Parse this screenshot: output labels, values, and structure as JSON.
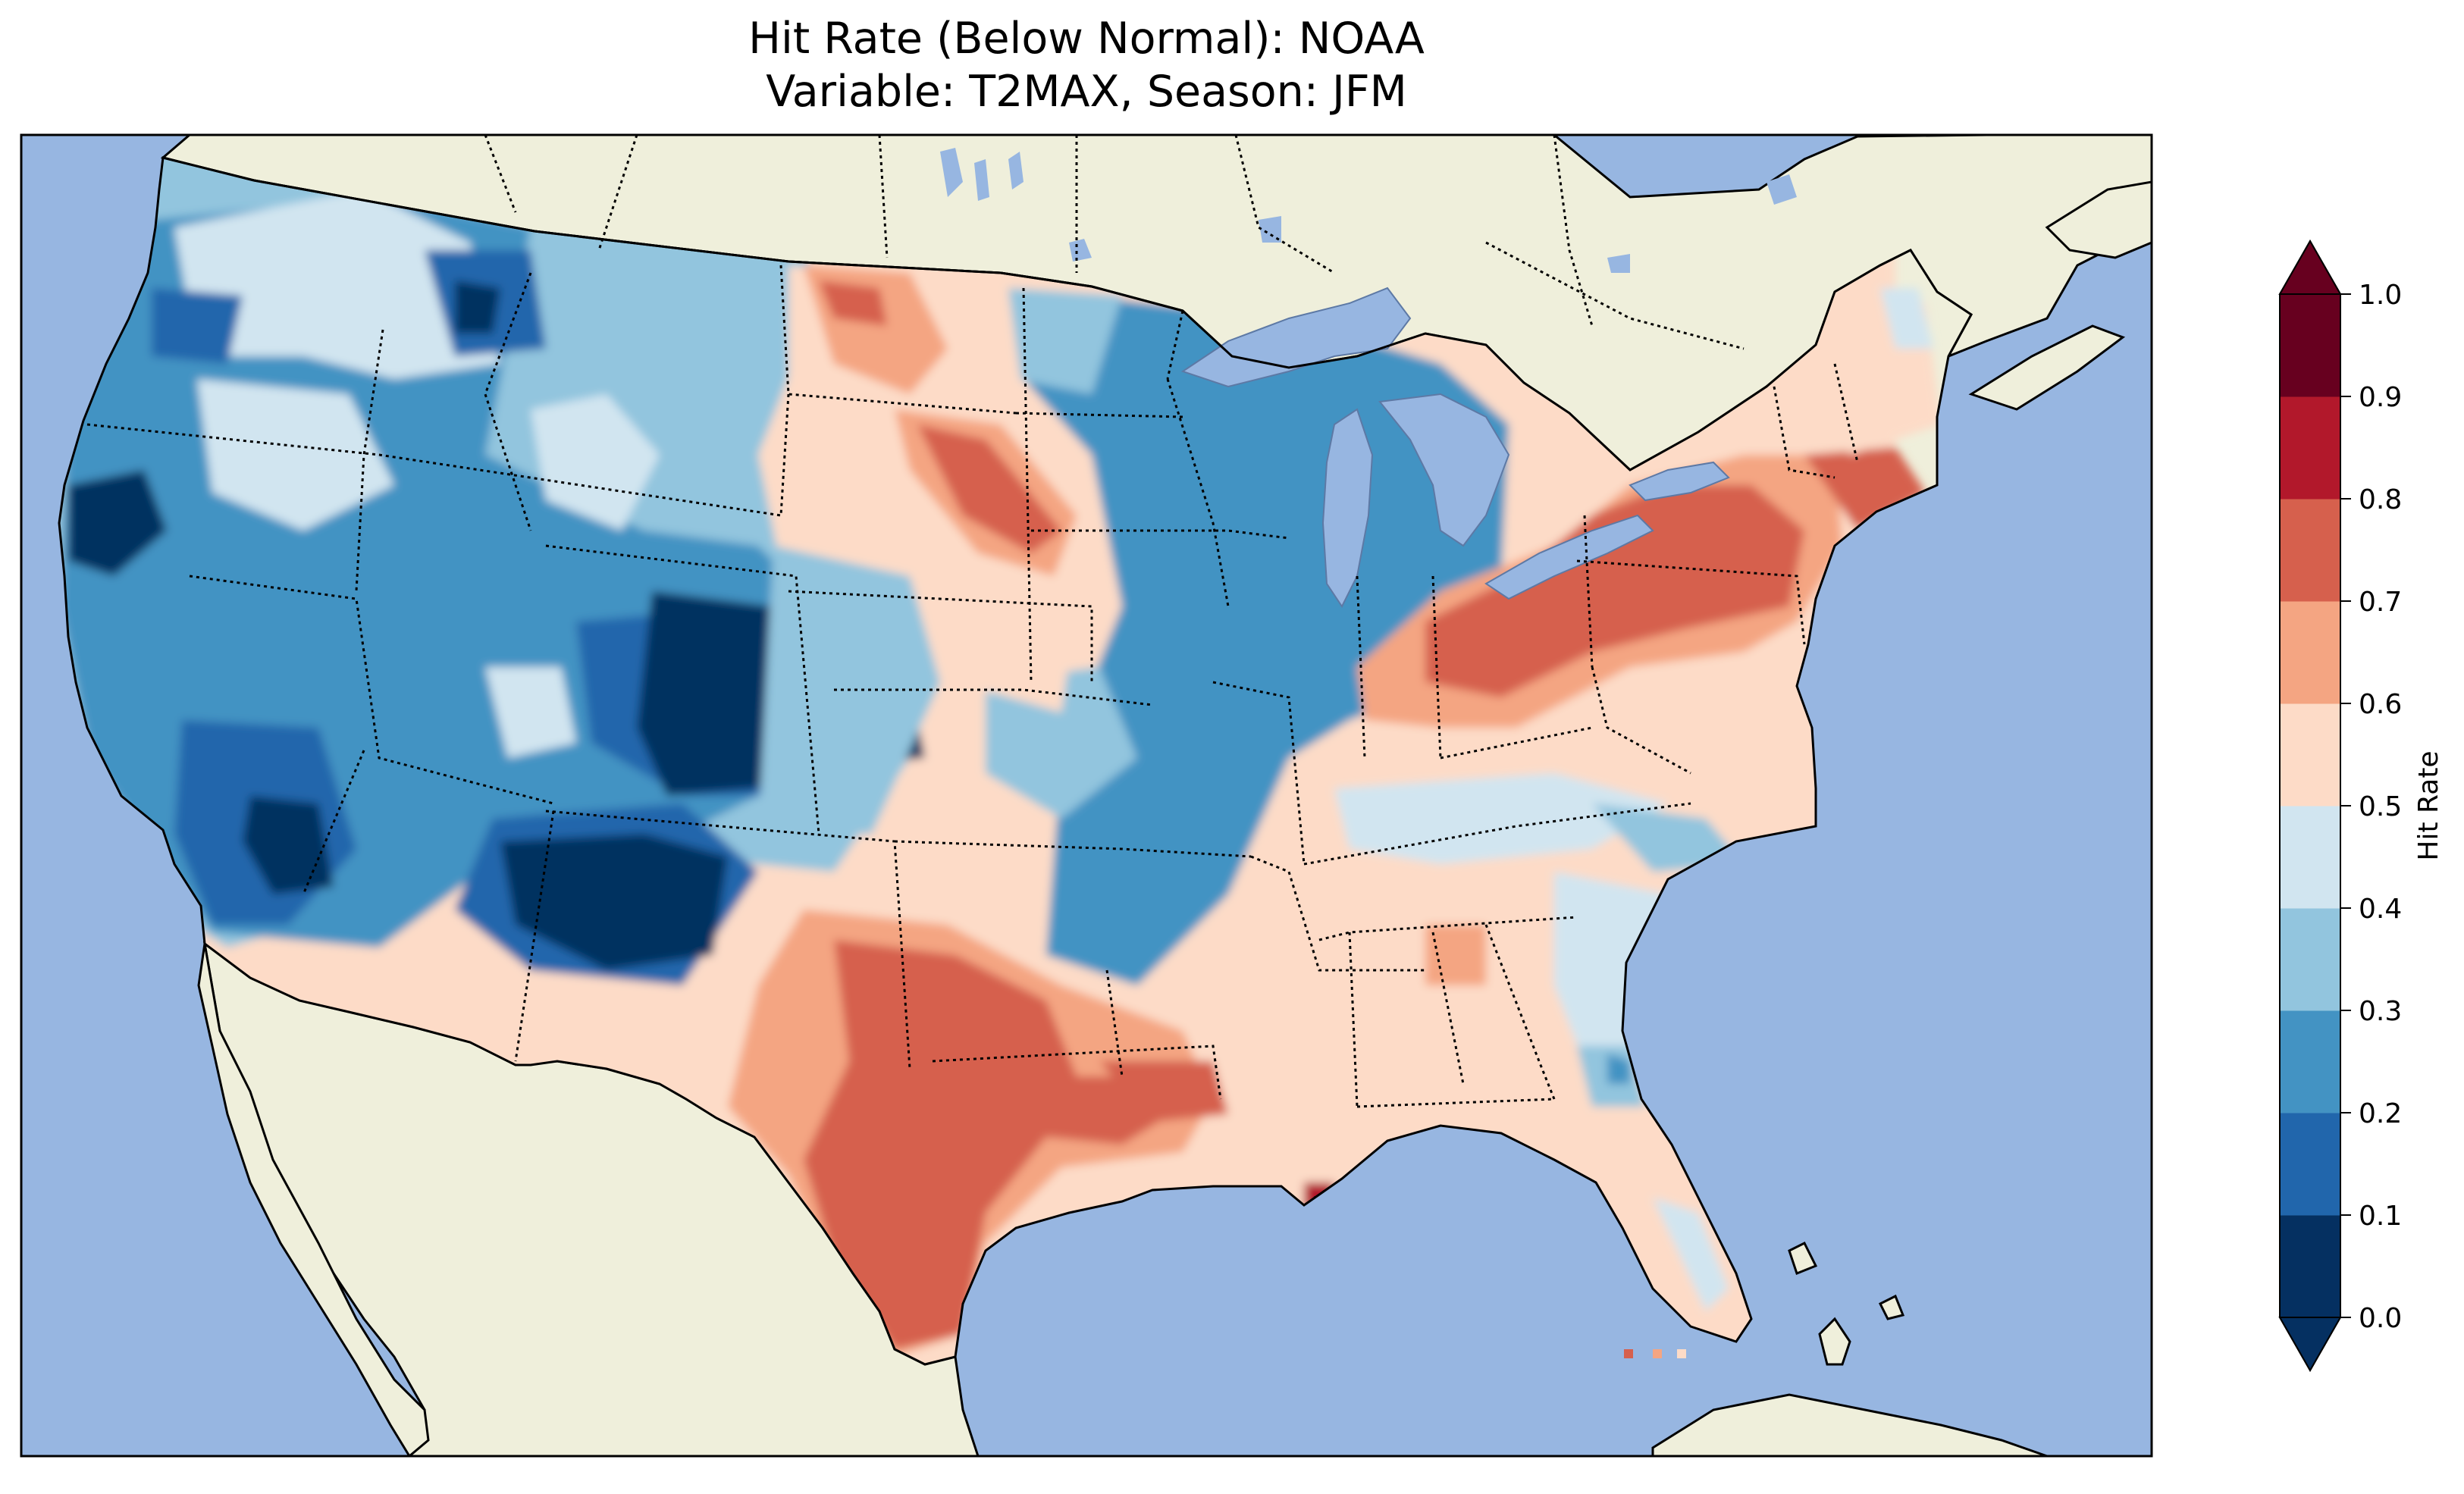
{
  "title": {
    "line1": "Hit Rate (Below Normal): NOAA",
    "line2": "Variable: T2MAX, Season: JFM"
  },
  "colorbar": {
    "label": "Hit Rate",
    "ticks": [
      "0.0",
      "0.1",
      "0.2",
      "0.3",
      "0.4",
      "0.5",
      "0.6",
      "0.7",
      "0.8",
      "0.9",
      "1.0"
    ],
    "colors": [
      "#053061",
      "#2166ac",
      "#4393c3",
      "#92c5de",
      "#d1e5f0",
      "#fddbc7",
      "#f4a582",
      "#d6604d",
      "#b2182b",
      "#67001f"
    ],
    "extend": "both"
  },
  "map": {
    "ocean_color": "#97b6e1",
    "land_color": "#efefdb",
    "lake_color": "#97b6e1",
    "region": "Contiguous United States",
    "regional_hit_rates": [
      {
        "region": "Pacific Northwest",
        "hit_rate": 0.25
      },
      {
        "region": "Northern California",
        "hit_rate": 0.05
      },
      {
        "region": "Great Basin",
        "hit_rate": 0.35
      },
      {
        "region": "Southern Rockies / Colorado",
        "hit_rate": 0.05
      },
      {
        "region": "Southwest / Arizona-New Mexico",
        "hit_rate": 0.05
      },
      {
        "region": "Northern Plains",
        "hit_rate": 0.55
      },
      {
        "region": "Upper Midwest",
        "hit_rate": 0.25
      },
      {
        "region": "Texas",
        "hit_rate": 0.75
      },
      {
        "region": "Southeast",
        "hit_rate": 0.55
      },
      {
        "region": "Ohio Valley / Pennsylvania",
        "hit_rate": 0.75
      },
      {
        "region": "New England",
        "hit_rate": 0.55
      },
      {
        "region": "Florida",
        "hit_rate": 0.55
      },
      {
        "region": "Louisiana coast",
        "hit_rate": 0.95
      }
    ]
  }
}
